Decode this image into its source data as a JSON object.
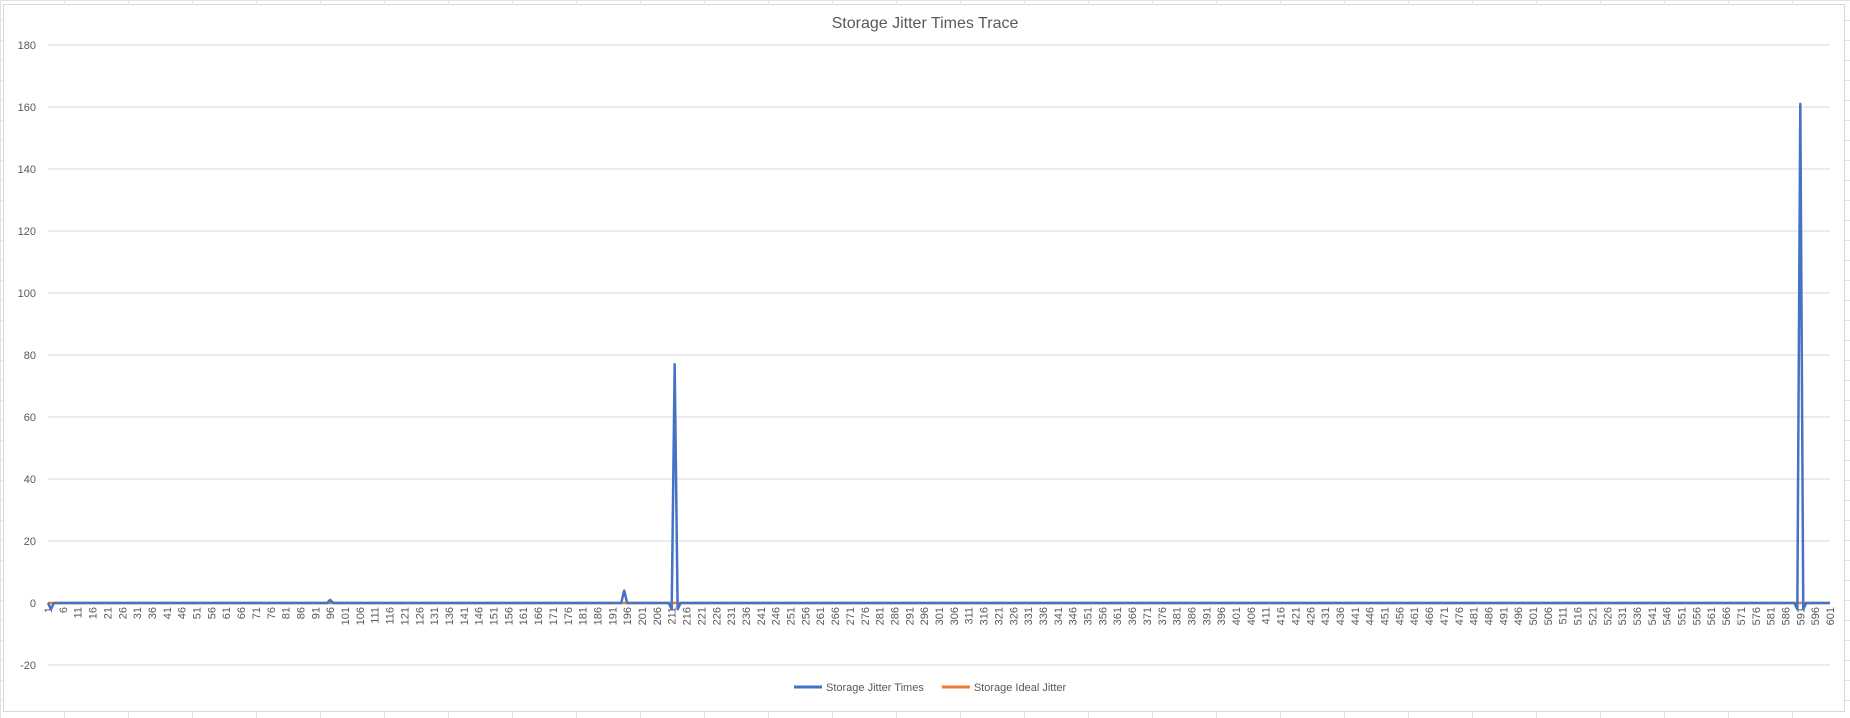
{
  "chart_data": {
    "type": "line",
    "title": "Storage Jitter Times Trace",
    "xlabel": "",
    "ylabel": "",
    "x_start": 1,
    "x_end": 601,
    "ylim": [
      -20,
      180
    ],
    "y_ticks": [
      -20,
      0,
      20,
      40,
      60,
      80,
      100,
      120,
      140,
      160,
      180
    ],
    "x_tick_labels": [
      "1",
      "6",
      "11",
      "16",
      "21",
      "26",
      "31",
      "36",
      "41",
      "46",
      "51",
      "56",
      "61",
      "66",
      "71",
      "76",
      "81",
      "86",
      "91",
      "96",
      "101",
      "106",
      "111",
      "116",
      "121",
      "126",
      "131",
      "136",
      "141",
      "146",
      "151",
      "156",
      "161",
      "166",
      "171",
      "176",
      "181",
      "186",
      "191",
      "196",
      "201",
      "206",
      "211",
      "216",
      "221",
      "226",
      "231",
      "236",
      "241",
      "246",
      "251",
      "256",
      "261",
      "266",
      "271",
      "276",
      "281",
      "286",
      "291",
      "296",
      "301",
      "306",
      "311",
      "316",
      "321",
      "326",
      "331",
      "336",
      "341",
      "346",
      "351",
      "356",
      "361",
      "366",
      "371",
      "376",
      "381",
      "386",
      "391",
      "396",
      "401",
      "406",
      "411",
      "416",
      "421",
      "426",
      "431",
      "436",
      "441",
      "446",
      "451",
      "456",
      "461",
      "466",
      "471",
      "476",
      "481",
      "486",
      "491",
      "496",
      "501",
      "506",
      "511",
      "516",
      "521",
      "526",
      "531",
      "536",
      "541",
      "546",
      "551",
      "556",
      "561",
      "566",
      "571",
      "576",
      "581",
      "586",
      "591",
      "596",
      "601"
    ],
    "grid": true,
    "legend_position": "bottom",
    "series": [
      {
        "name": "Storage Jitter Times",
        "color": "#4472c4",
        "points": [
          [
            1,
            0
          ],
          [
            2,
            -2
          ],
          [
            3,
            0
          ],
          [
            95,
            0
          ],
          [
            96,
            1
          ],
          [
            97,
            0
          ],
          [
            194,
            0
          ],
          [
            195,
            4
          ],
          [
            196,
            0
          ],
          [
            210,
            0
          ],
          [
            211,
            -2
          ],
          [
            212,
            77
          ],
          [
            213,
            -2
          ],
          [
            214,
            0
          ],
          [
            589,
            0
          ],
          [
            590,
            -2
          ],
          [
            591,
            161
          ],
          [
            592,
            -2
          ],
          [
            593,
            0
          ],
          [
            601,
            0
          ]
        ]
      },
      {
        "name": "Storage Ideal Jitter",
        "color": "#ed7d31",
        "points": [
          [
            1,
            0
          ],
          [
            601,
            0
          ]
        ]
      }
    ]
  }
}
